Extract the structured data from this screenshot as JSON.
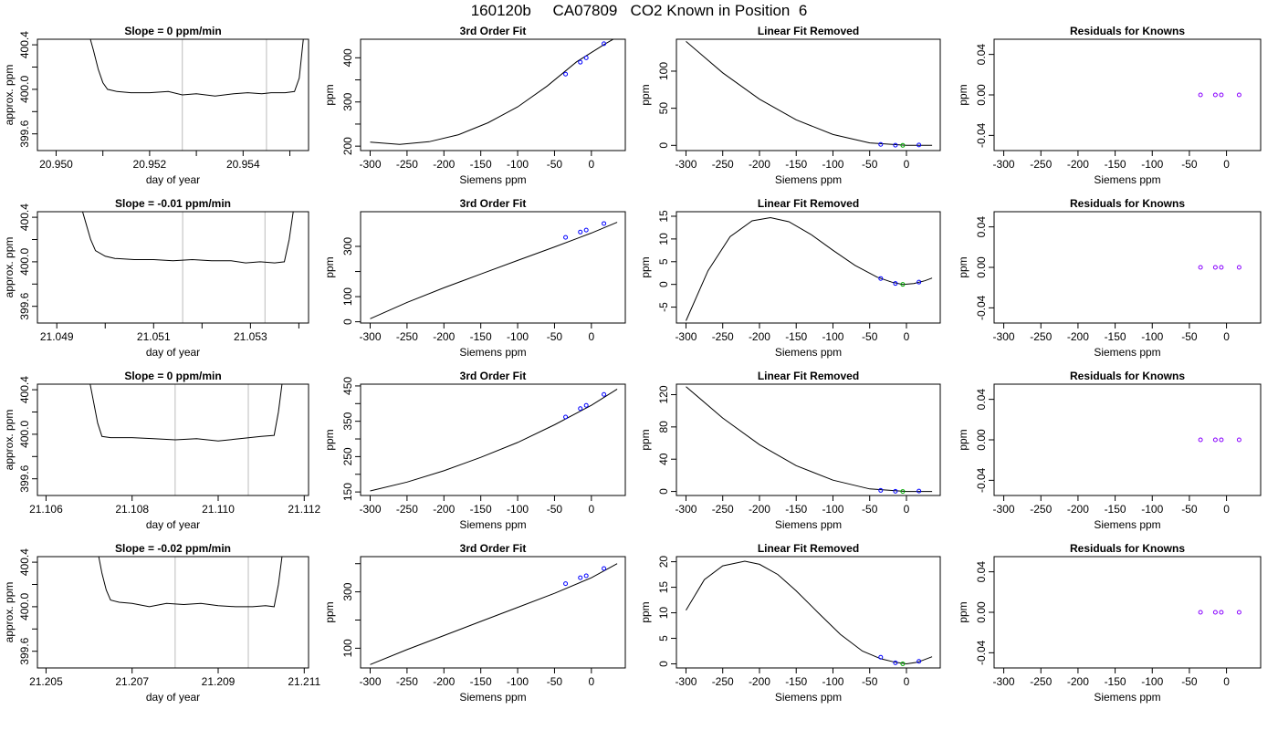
{
  "main_title": "160120b     CA07809   CO2 Known in Position  6",
  "chart_data": [
    {
      "type": "line",
      "row": 0,
      "panel": "trace",
      "title": "Slope =  0  ppm/min",
      "xlabel": "day of year",
      "ylabel": "approx. ppm",
      "xlim": [
        20.9496,
        20.9554
      ],
      "ylim": [
        399.45,
        400.45
      ],
      "xticks": [
        20.95,
        20.951,
        20.952,
        20.953,
        20.954,
        20.955
      ],
      "xtick_labels": [
        "20.950",
        "",
        "20.952",
        "",
        "20.954",
        ""
      ],
      "yticks": [
        399.6,
        399.8,
        400.0,
        400.2,
        400.4
      ],
      "ytick_labels": [
        "399.6",
        "",
        "400.0",
        "",
        "400.4"
      ],
      "vlines": [
        20.9527,
        20.9545
      ],
      "x": [
        20.9507,
        20.9508,
        20.9509,
        20.951,
        20.9511,
        20.9513,
        20.9516,
        20.952,
        20.9524,
        20.9527,
        20.953,
        20.9534,
        20.9538,
        20.9541,
        20.9544,
        20.9546,
        20.9549,
        20.9551,
        20.9552,
        20.9553
      ],
      "y": [
        400.5,
        400.35,
        400.18,
        400.06,
        400.0,
        399.98,
        399.97,
        399.97,
        399.98,
        399.95,
        399.96,
        399.94,
        399.96,
        399.97,
        399.96,
        399.97,
        399.97,
        399.98,
        400.1,
        400.5
      ]
    },
    {
      "type": "scatter",
      "row": 0,
      "panel": "fit",
      "title": "3rd Order Fit",
      "xlabel": "Siemens ppm",
      "ylabel": "ppm",
      "xlim": [
        -313,
        46
      ],
      "ylim": [
        190,
        442
      ],
      "xticks": [
        -300,
        -250,
        -200,
        -150,
        -100,
        -50,
        0
      ],
      "xtick_labels": [
        "-300",
        "-250",
        "-200",
        "-150",
        "-100",
        "-50",
        "0"
      ],
      "yticks": [
        200,
        250,
        300,
        350,
        400
      ],
      "ytick_labels": [
        "200",
        "",
        "300",
        "",
        "400"
      ],
      "curve_x": [
        -300,
        -260,
        -220,
        -180,
        -140,
        -100,
        -60,
        -20,
        20,
        35
      ],
      "curve_y": [
        209,
        204,
        210,
        226,
        253,
        289,
        336,
        391,
        433,
        447
      ],
      "points": {
        "x": [
          -35,
          -15,
          -7,
          17
        ],
        "y": [
          363,
          390,
          400,
          432
        ]
      }
    },
    {
      "type": "scatter",
      "row": 0,
      "panel": "linear_removed",
      "title": "Linear Fit Removed",
      "xlabel": "Siemens ppm",
      "ylabel": "ppm",
      "xlim": [
        -313,
        46
      ],
      "ylim": [
        -7,
        143
      ],
      "xticks": [
        -300,
        -250,
        -200,
        -150,
        -100,
        -50,
        0
      ],
      "xtick_labels": [
        "-300",
        "-250",
        "-200",
        "-150",
        "-100",
        "-50",
        "0"
      ],
      "yticks": [
        0,
        50,
        100
      ],
      "ytick_labels": [
        "0",
        "50",
        "100"
      ],
      "curve_x": [
        -300,
        -250,
        -200,
        -150,
        -100,
        -50,
        0,
        35
      ],
      "curve_y": [
        140,
        97.7,
        62.2,
        34.4,
        14.7,
        3.3,
        0,
        0
      ],
      "points": {
        "x": [
          -35,
          -15,
          -5,
          17
        ],
        "y": [
          1.3,
          0.2,
          0,
          0.5
        ]
      }
    },
    {
      "type": "scatter",
      "row": 0,
      "panel": "residuals",
      "title": "Residuals for Knowns",
      "xlabel": "Siemens ppm",
      "ylabel": "ppm",
      "xlim": [
        -313,
        46
      ],
      "ylim": [
        -0.055,
        0.055
      ],
      "xticks": [
        -300,
        -250,
        -200,
        -150,
        -100,
        -50,
        0
      ],
      "xtick_labels": [
        "-300",
        "-250",
        "-200",
        "-150",
        "-100",
        "-50",
        "0"
      ],
      "yticks": [
        -0.04,
        0.0,
        0.04
      ],
      "ytick_labels": [
        "-0.04",
        "0.00",
        "0.04"
      ],
      "points": {
        "x": [
          -35,
          -15,
          -7,
          17
        ],
        "y": [
          0,
          0,
          0,
          0
        ]
      }
    },
    {
      "type": "line",
      "row": 1,
      "panel": "trace",
      "title": "Slope =  -0.01  ppm/min",
      "xlabel": "day of year",
      "ylabel": "approx. ppm",
      "xlim": [
        21.0486,
        21.0542
      ],
      "ylim": [
        399.45,
        400.45
      ],
      "xticks": [
        21.049,
        21.05,
        21.051,
        21.052,
        21.053,
        21.054
      ],
      "xtick_labels": [
        "21.049",
        "",
        "21.051",
        "",
        "21.053",
        ""
      ],
      "yticks": [
        399.6,
        399.8,
        400.0,
        400.2,
        400.4
      ],
      "ytick_labels": [
        "399.6",
        "",
        "400.0",
        "",
        "400.4"
      ],
      "vlines": [
        21.0516,
        21.0533
      ],
      "x": [
        21.0495,
        21.0496,
        21.0497,
        21.0498,
        21.05,
        21.0502,
        21.0506,
        21.051,
        21.0514,
        21.0518,
        21.0522,
        21.0526,
        21.0529,
        21.0532,
        21.0535,
        21.0537,
        21.0538,
        21.0539
      ],
      "y": [
        400.5,
        400.35,
        400.2,
        400.1,
        400.05,
        400.03,
        400.02,
        400.02,
        400.01,
        400.02,
        400.01,
        400.01,
        399.99,
        400.0,
        399.99,
        400.0,
        400.2,
        400.5
      ]
    },
    {
      "type": "scatter",
      "row": 1,
      "panel": "fit",
      "title": "3rd Order Fit",
      "xlabel": "Siemens ppm",
      "ylabel": "ppm",
      "xlim": [
        -313,
        46
      ],
      "ylim": [
        -5,
        438
      ],
      "xticks": [
        -300,
        -250,
        -200,
        -150,
        -100,
        -50,
        0
      ],
      "xtick_labels": [
        "-300",
        "-250",
        "-200",
        "-150",
        "-100",
        "-50",
        "0"
      ],
      "yticks": [
        0,
        100,
        200,
        300
      ],
      "ytick_labels": [
        "0",
        "100",
        "",
        "300"
      ],
      "curve_x": [
        -300,
        -250,
        -200,
        -150,
        -100,
        -50,
        0,
        35
      ],
      "curve_y": [
        12,
        77,
        135,
        190,
        244,
        298,
        353,
        396
      ],
      "points": {
        "x": [
          -35,
          -15,
          -7,
          17
        ],
        "y": [
          336,
          357,
          365,
          391
        ]
      }
    },
    {
      "type": "scatter",
      "row": 1,
      "panel": "linear_removed",
      "title": "Linear Fit Removed",
      "xlabel": "Siemens ppm",
      "ylabel": "ppm",
      "xlim": [
        -313,
        46
      ],
      "ylim": [
        -8.5,
        16
      ],
      "xticks": [
        -300,
        -250,
        -200,
        -150,
        -100,
        -50,
        0
      ],
      "xtick_labels": [
        "-300",
        "-250",
        "-200",
        "-150",
        "-100",
        "-50",
        "0"
      ],
      "yticks": [
        -5,
        0,
        5,
        10,
        15
      ],
      "ytick_labels": [
        "-5",
        "0",
        "5",
        "10",
        "15"
      ],
      "curve_x": [
        -300,
        -270,
        -240,
        -210,
        -185,
        -160,
        -130,
        -100,
        -70,
        -40,
        -20,
        -5,
        10,
        25,
        35
      ],
      "curve_y": [
        -8,
        3,
        10.5,
        14,
        14.7,
        13.8,
        11,
        7.5,
        4.2,
        1.6,
        0.5,
        0,
        0.2,
        0.8,
        1.4
      ],
      "points": {
        "x": [
          -35,
          -15,
          -5,
          17
        ],
        "y": [
          1.3,
          0.2,
          0,
          0.5
        ]
      }
    },
    {
      "type": "scatter",
      "row": 1,
      "panel": "residuals",
      "title": "Residuals for Knowns",
      "xlabel": "Siemens ppm",
      "ylabel": "ppm",
      "xlim": [
        -313,
        46
      ],
      "ylim": [
        -0.055,
        0.055
      ],
      "xticks": [
        -300,
        -250,
        -200,
        -150,
        -100,
        -50,
        0
      ],
      "xtick_labels": [
        "-300",
        "-250",
        "-200",
        "-150",
        "-100",
        "-50",
        "0"
      ],
      "yticks": [
        -0.04,
        0.0,
        0.04
      ],
      "ytick_labels": [
        "-0.04",
        "0.00",
        "0.04"
      ],
      "points": {
        "x": [
          -35,
          -15,
          -7,
          17
        ],
        "y": [
          0,
          0,
          0,
          0
        ]
      }
    },
    {
      "type": "line",
      "row": 2,
      "panel": "trace",
      "title": "Slope =  0  ppm/min",
      "xlabel": "day of year",
      "ylabel": "approx. ppm",
      "xlim": [
        21.1058,
        21.1121
      ],
      "ylim": [
        399.45,
        400.45
      ],
      "xticks": [
        21.106,
        21.108,
        21.11,
        21.112
      ],
      "xtick_labels": [
        "21.106",
        "21.108",
        "21.110",
        "21.112"
      ],
      "vlines": [
        21.109,
        21.1107
      ],
      "yticks": [
        399.6,
        399.8,
        400.0,
        400.2,
        400.4
      ],
      "ytick_labels": [
        "399.6",
        "",
        "400.0",
        "",
        "400.4"
      ],
      "x": [
        21.107,
        21.1071,
        21.1072,
        21.1073,
        21.1075,
        21.108,
        21.1085,
        21.109,
        21.1095,
        21.11,
        21.1105,
        21.111,
        21.1113,
        21.1114,
        21.1115
      ],
      "y": [
        400.5,
        400.3,
        400.1,
        399.98,
        399.97,
        399.97,
        399.96,
        399.95,
        399.96,
        399.94,
        399.96,
        399.98,
        399.99,
        400.2,
        400.5
      ]
    },
    {
      "type": "scatter",
      "row": 2,
      "panel": "fit",
      "title": "3rd Order Fit",
      "xlabel": "Siemens ppm",
      "ylabel": "ppm",
      "xlim": [
        -313,
        46
      ],
      "ylim": [
        140,
        455
      ],
      "xticks": [
        -300,
        -250,
        -200,
        -150,
        -100,
        -50,
        0
      ],
      "xtick_labels": [
        "-300",
        "-250",
        "-200",
        "-150",
        "-100",
        "-50",
        "0"
      ],
      "yticks": [
        150,
        250,
        350,
        450
      ],
      "ytick_labels": [
        "150",
        "250",
        "350",
        "450"
      ],
      "yticks_minor": [
        200,
        300,
        400
      ],
      "curve_x": [
        -300,
        -250,
        -200,
        -150,
        -100,
        -50,
        0,
        35
      ],
      "curve_y": [
        153,
        178,
        210,
        248,
        290,
        340,
        395,
        441
      ],
      "points": {
        "x": [
          -35,
          -15,
          -7,
          17
        ],
        "y": [
          362,
          386,
          395,
          426
        ]
      }
    },
    {
      "type": "scatter",
      "row": 2,
      "panel": "linear_removed",
      "title": "Linear Fit Removed",
      "xlabel": "Siemens ppm",
      "ylabel": "ppm",
      "xlim": [
        -313,
        46
      ],
      "ylim": [
        -5,
        133
      ],
      "xticks": [
        -300,
        -250,
        -200,
        -150,
        -100,
        -50,
        0
      ],
      "xtick_labels": [
        "-300",
        "-250",
        "-200",
        "-150",
        "-100",
        "-50",
        "0"
      ],
      "yticks": [
        0,
        40,
        80,
        120
      ],
      "ytick_labels": [
        "0",
        "40",
        "80",
        "120"
      ],
      "curve_x": [
        -300,
        -250,
        -200,
        -150,
        -100,
        -50,
        0,
        35
      ],
      "curve_y": [
        130,
        91,
        58,
        32,
        14,
        3.2,
        0,
        0
      ],
      "points": {
        "x": [
          -35,
          -15,
          -5,
          17
        ],
        "y": [
          1.3,
          0.2,
          0,
          0.5
        ]
      }
    },
    {
      "type": "scatter",
      "row": 2,
      "panel": "residuals",
      "title": "Residuals for Knowns",
      "xlabel": "Siemens ppm",
      "ylabel": "ppm",
      "xlim": [
        -313,
        46
      ],
      "ylim": [
        -0.055,
        0.055
      ],
      "xticks": [
        -300,
        -250,
        -200,
        -150,
        -100,
        -50,
        0
      ],
      "xtick_labels": [
        "-300",
        "-250",
        "-200",
        "-150",
        "-100",
        "-50",
        "0"
      ],
      "yticks": [
        -0.04,
        0.0,
        0.04
      ],
      "ytick_labels": [
        "-0.04",
        "0.00",
        "0.04"
      ],
      "points": {
        "x": [
          -35,
          -15,
          -7,
          17
        ],
        "y": [
          0,
          0,
          0,
          0
        ]
      }
    },
    {
      "type": "line",
      "row": 3,
      "panel": "trace",
      "title": "Slope =  -0.02  ppm/min",
      "xlabel": "day of year",
      "ylabel": "approx. ppm",
      "xlim": [
        21.2048,
        21.2111
      ],
      "ylim": [
        399.45,
        400.45
      ],
      "xticks": [
        21.205,
        21.207,
        21.209,
        21.211
      ],
      "xtick_labels": [
        "21.205",
        "21.207",
        "21.209",
        "21.211"
      ],
      "vlines": [
        21.208,
        21.2097
      ],
      "yticks": [
        399.6,
        399.8,
        400.0,
        400.2,
        400.4
      ],
      "ytick_labels": [
        "399.6",
        "",
        "400.0",
        "",
        "400.4"
      ],
      "x": [
        21.2062,
        21.2063,
        21.2064,
        21.2065,
        21.2067,
        21.207,
        21.2074,
        21.2078,
        21.2082,
        21.2086,
        21.209,
        21.2094,
        21.2098,
        21.2101,
        21.2103,
        21.2104,
        21.2105
      ],
      "y": [
        400.5,
        400.3,
        400.15,
        400.06,
        400.04,
        400.03,
        400.0,
        400.03,
        400.02,
        400.03,
        400.01,
        400.0,
        400.0,
        400.01,
        400.0,
        400.2,
        400.5
      ]
    },
    {
      "type": "scatter",
      "row": 3,
      "panel": "fit",
      "title": "3rd Order Fit",
      "xlabel": "Siemens ppm",
      "ylabel": "ppm",
      "xlim": [
        -313,
        46
      ],
      "ylim": [
        30,
        425
      ],
      "xticks": [
        -300,
        -250,
        -200,
        -150,
        -100,
        -50,
        0
      ],
      "xtick_labels": [
        "-300",
        "-250",
        "-200",
        "-150",
        "-100",
        "-50",
        "0"
      ],
      "yticks": [
        100,
        200,
        300,
        400
      ],
      "ytick_labels": [
        "100",
        "",
        "300",
        ""
      ],
      "curve_x": [
        -300,
        -250,
        -200,
        -150,
        -100,
        -50,
        0,
        35
      ],
      "curve_y": [
        42,
        95,
        145,
        195,
        245,
        295,
        350,
        400
      ],
      "points": {
        "x": [
          -35,
          -15,
          -7,
          17
        ],
        "y": [
          329,
          350,
          357,
          383
        ]
      }
    },
    {
      "type": "scatter",
      "row": 3,
      "panel": "linear_removed",
      "title": "Linear Fit Removed",
      "xlabel": "Siemens ppm",
      "ylabel": "ppm",
      "xlim": [
        -313,
        46
      ],
      "ylim": [
        -0.8,
        21
      ],
      "xticks": [
        -300,
        -250,
        -200,
        -150,
        -100,
        -50,
        0
      ],
      "xtick_labels": [
        "-300",
        "-250",
        "-200",
        "-150",
        "-100",
        "-50",
        "0"
      ],
      "yticks": [
        0,
        5,
        10,
        15,
        20
      ],
      "ytick_labels": [
        "0",
        "5",
        "10",
        "15",
        "20"
      ],
      "curve_x": [
        -300,
        -275,
        -250,
        -220,
        -200,
        -175,
        -150,
        -120,
        -90,
        -60,
        -35,
        -15,
        0,
        15,
        35
      ],
      "curve_y": [
        10.5,
        16.5,
        19.2,
        20.1,
        19.5,
        17.5,
        14.3,
        10,
        5.8,
        2.5,
        1.0,
        0.3,
        0,
        0.3,
        1.4
      ],
      "points": {
        "x": [
          -35,
          -15,
          -5,
          17
        ],
        "y": [
          1.3,
          0.2,
          0,
          0.5
        ]
      }
    },
    {
      "type": "scatter",
      "row": 3,
      "panel": "residuals",
      "title": "Residuals for Knowns",
      "xlabel": "Siemens ppm",
      "ylabel": "ppm",
      "xlim": [
        -313,
        46
      ],
      "ylim": [
        -0.055,
        0.055
      ],
      "xticks": [
        -300,
        -250,
        -200,
        -150,
        -100,
        -50,
        0
      ],
      "xtick_labels": [
        "-300",
        "-250",
        "-200",
        "-150",
        "-100",
        "-50",
        "0"
      ],
      "yticks": [
        -0.04,
        0.0,
        0.04
      ],
      "ytick_labels": [
        "-0.04",
        "0.00",
        "0.04"
      ],
      "points": {
        "x": [
          -35,
          -15,
          -7,
          17
        ],
        "y": [
          0,
          0,
          0,
          0
        ]
      }
    }
  ],
  "colors": {
    "point_blue": "#0000ff",
    "point_purple": "#8800ff",
    "point_green": "#00aa00",
    "point_red": "#ff0000",
    "vline": "#bbbbbb",
    "curve": "#000000"
  }
}
